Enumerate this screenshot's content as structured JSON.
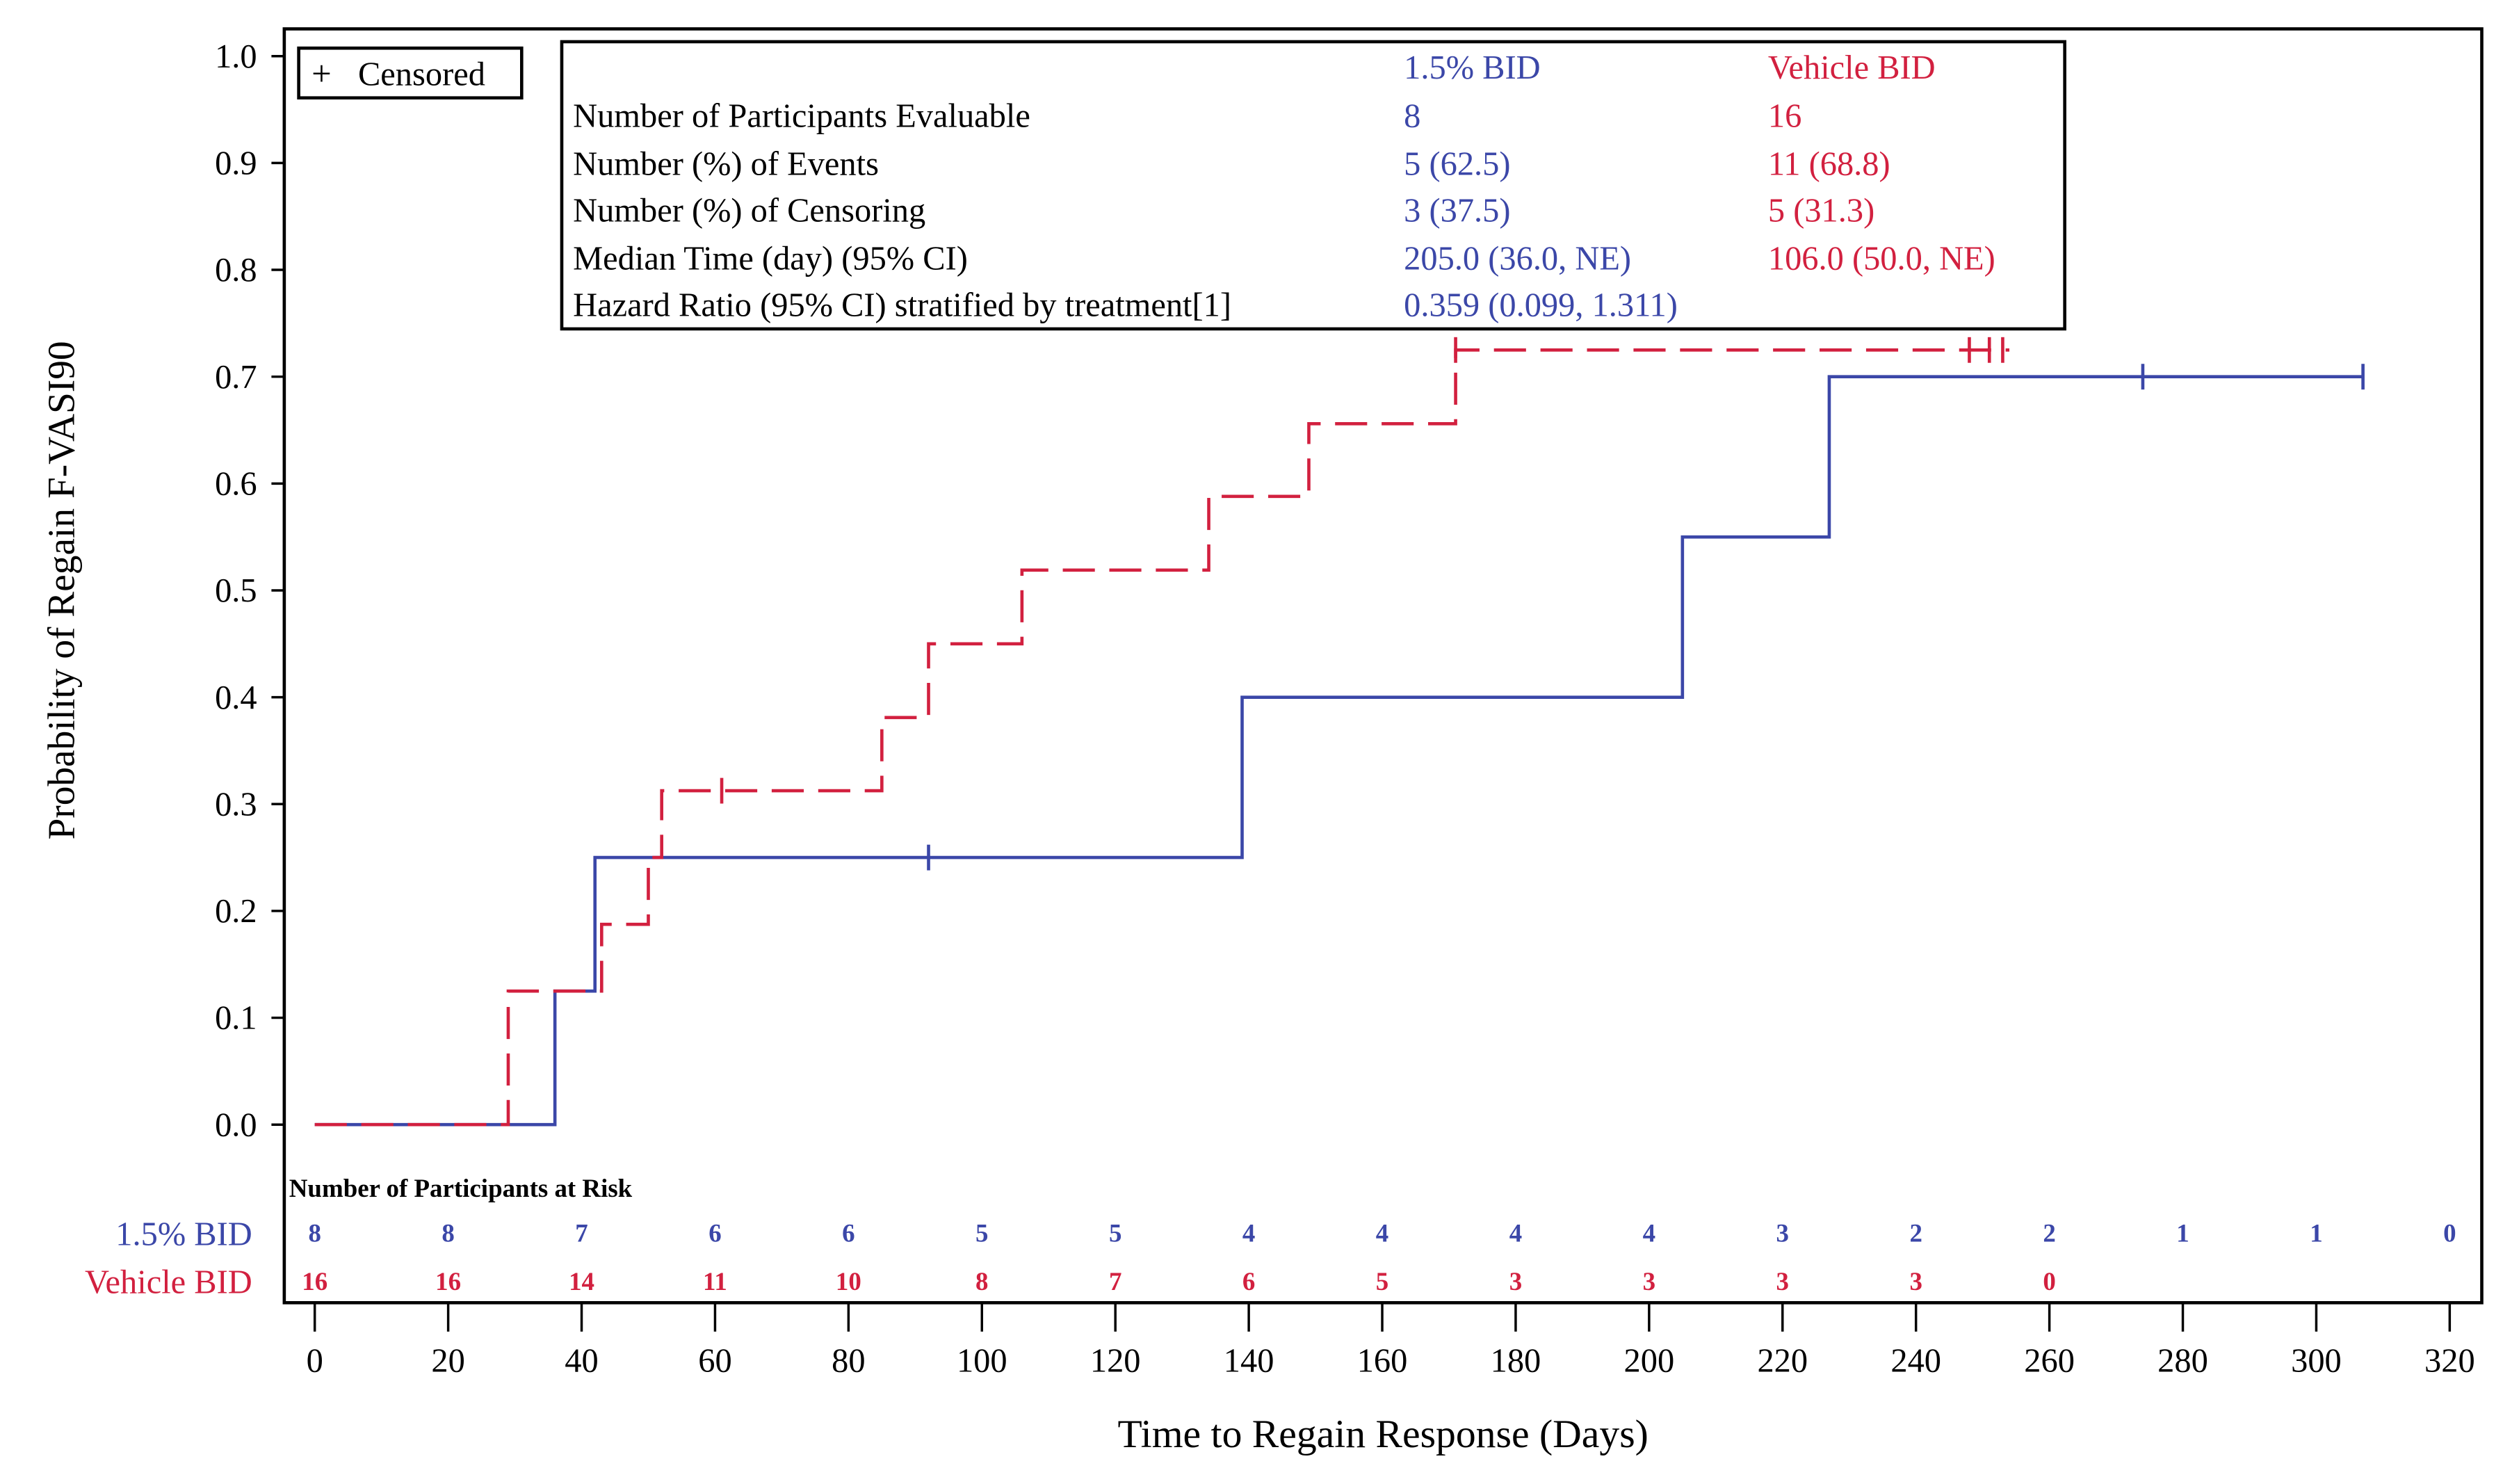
{
  "colors": {
    "blue": "#3b47a8",
    "red": "#d2203f",
    "axis": "#000000"
  },
  "legend": {
    "symbol": "+",
    "label": "Censored"
  },
  "summary_table": {
    "headers": [
      "",
      "1.5% BID",
      "Vehicle BID"
    ],
    "rows": [
      [
        "Number of Participants Evaluable",
        "8",
        "16"
      ],
      [
        "Number (%) of Events",
        "5 (62.5)",
        "11 (68.8)"
      ],
      [
        "Number (%) of Censoring",
        "3 (37.5)",
        "5 (31.3)"
      ],
      [
        "Median Time (day) (95% CI)",
        "205.0 (36.0, NE)",
        "106.0 (50.0, NE)"
      ],
      [
        "Hazard Ratio (95% CI) stratified by treatment[1]",
        "0.359 (0.099, 1.311)",
        ""
      ]
    ]
  },
  "risk_table": {
    "title": "Number of Participants at Risk",
    "times": [
      0,
      20,
      40,
      60,
      80,
      100,
      120,
      140,
      160,
      180,
      200,
      220,
      240,
      260,
      280,
      300,
      320
    ],
    "rows": [
      {
        "label": "1.5% BID",
        "values": [
          "8",
          "8",
          "7",
          "6",
          "6",
          "5",
          "5",
          "4",
          "4",
          "4",
          "4",
          "3",
          "2",
          "2",
          "1",
          "1",
          "0"
        ]
      },
      {
        "label": "Vehicle BID",
        "values": [
          "16",
          "16",
          "14",
          "11",
          "10",
          "8",
          "7",
          "6",
          "5",
          "3",
          "3",
          "3",
          "3",
          "0"
        ]
      }
    ]
  },
  "chart_data": {
    "type": "line",
    "subtype": "kaplan-meier step",
    "xlabel": "Time to Regain Response (Days)",
    "ylabel": "Probability of Regain F-VASI90",
    "xlim": [
      0,
      320
    ],
    "ylim": [
      0,
      1.0
    ],
    "xticks": [
      "0",
      "20",
      "40",
      "60",
      "80",
      "100",
      "120",
      "140",
      "160",
      "180",
      "200",
      "220",
      "240",
      "260",
      "280",
      "300",
      "320"
    ],
    "yticks": [
      "0.0",
      "0.1",
      "0.2",
      "0.3",
      "0.4",
      "0.5",
      "0.6",
      "0.7",
      "0.8",
      "0.9",
      "1.0"
    ],
    "grid": false,
    "legend_placement": "top-left",
    "series": [
      {
        "name": "1.5% BID",
        "color": "#3b47a8",
        "line_style": "solid",
        "steps": [
          [
            0,
            0
          ],
          [
            36,
            0.125
          ],
          [
            42,
            0.25
          ],
          [
            139,
            0.4
          ],
          [
            205,
            0.55
          ],
          [
            227,
            0.7
          ]
        ],
        "end": 307,
        "censored": [
          [
            92,
            0.25
          ],
          [
            274,
            0.7
          ],
          [
            307,
            0.7
          ]
        ]
      },
      {
        "name": "Vehicle BID",
        "color": "#d2203f",
        "line_style": "dashed",
        "steps": [
          [
            0,
            0
          ],
          [
            29,
            0.125
          ],
          [
            43,
            0.1875
          ],
          [
            50,
            0.25
          ],
          [
            52,
            0.3125
          ],
          [
            85,
            0.381
          ],
          [
            92,
            0.45
          ],
          [
            106,
            0.519
          ],
          [
            134,
            0.588
          ],
          [
            149,
            0.656
          ],
          [
            171,
            0.725
          ]
        ],
        "end": 254,
        "censored": [
          [
            61,
            0.3125
          ],
          [
            171,
            0.725
          ],
          [
            248,
            0.725
          ],
          [
            251,
            0.725
          ],
          [
            253,
            0.725
          ]
        ]
      }
    ]
  }
}
